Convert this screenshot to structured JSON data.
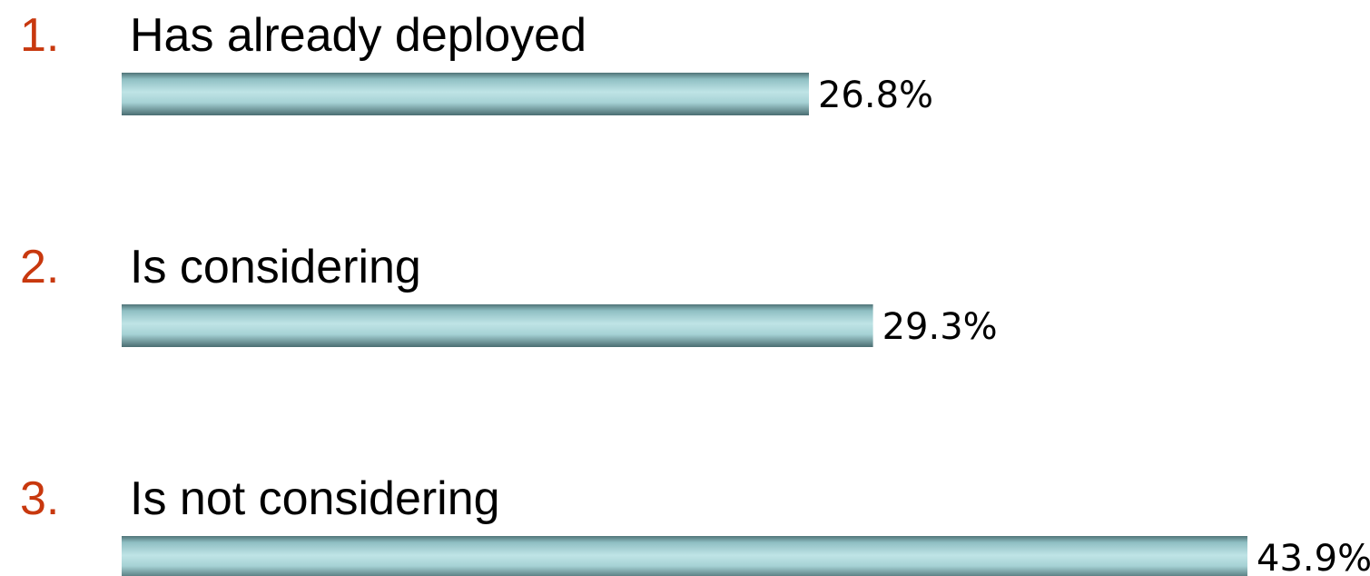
{
  "chart_data": {
    "type": "bar",
    "orientation": "horizontal",
    "markers": [
      "1.",
      "2.",
      "3."
    ],
    "categories": [
      "Has already deployed",
      "Is considering",
      "Is not considering"
    ],
    "values": [
      26.8,
      29.3,
      43.9
    ],
    "value_labels": [
      "26.8%",
      "29.3%",
      "43.9%"
    ],
    "marker_color": "#c8380e"
  }
}
